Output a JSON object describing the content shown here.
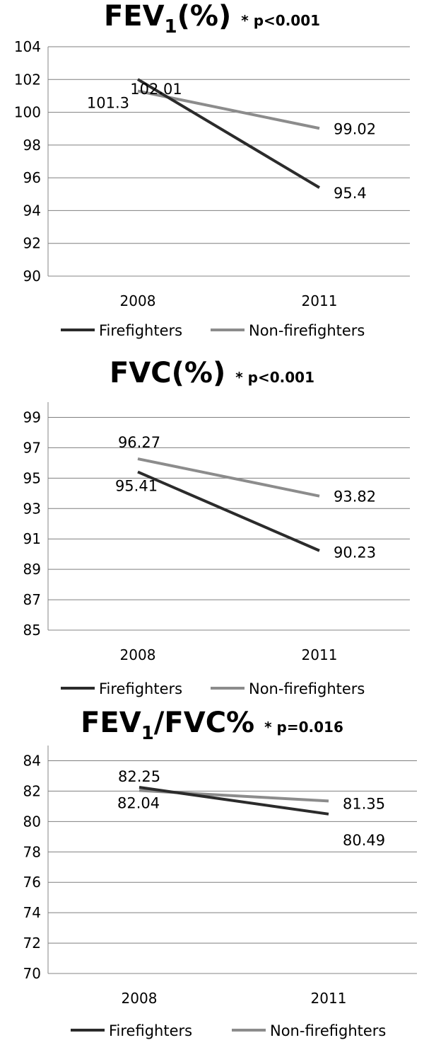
{
  "colors": {
    "firefighters": "#2b2b2b",
    "non_firefighters": "#8c8c8c",
    "grid": "#7f7f7f",
    "axis": "#868686"
  },
  "chart_data": [
    {
      "type": "line",
      "title": {
        "main": "FEV",
        "sub": "1",
        "suffix": "(%)",
        "note": "* p<0.001"
      },
      "categories": [
        "2008",
        "2011"
      ],
      "ylim": [
        90,
        104
      ],
      "yticks": [
        "90",
        "92",
        "94",
        "96",
        "98",
        "100",
        "102",
        "104"
      ],
      "grid": true,
      "legend": "bottom",
      "series": [
        {
          "name": "Firefighters",
          "values": [
            102.01,
            95.4
          ],
          "labels": [
            "102.01",
            "95.4"
          ]
        },
        {
          "name": "Non-firefighters",
          "values": [
            101.3,
            99.02
          ],
          "labels": [
            "101.3",
            "99.02"
          ]
        }
      ]
    },
    {
      "type": "line",
      "title": {
        "main": "FVC(%)",
        "sub": "",
        "suffix": "",
        "note": "* p<0.001"
      },
      "categories": [
        "2008",
        "2011"
      ],
      "ylim": [
        85,
        100
      ],
      "yticks": [
        "85",
        "87",
        "89",
        "91",
        "93",
        "95",
        "97",
        "99"
      ],
      "grid": true,
      "legend": "bottom",
      "series": [
        {
          "name": "Firefighters",
          "values": [
            95.41,
            90.23
          ],
          "labels": [
            "95.41",
            "90.23"
          ]
        },
        {
          "name": "Non-firefighters",
          "values": [
            96.27,
            93.82
          ],
          "labels": [
            "96.27",
            "93.82"
          ]
        }
      ]
    },
    {
      "type": "line",
      "title": {
        "main": "FEV",
        "sub": "1",
        "suffix": "/FVC%",
        "note": "* p=0.016"
      },
      "categories": [
        "2008",
        "2011"
      ],
      "ylim": [
        70,
        85
      ],
      "yticks": [
        "70",
        "72",
        "74",
        "76",
        "78",
        "80",
        "82",
        "84"
      ],
      "grid": true,
      "legend": "bottom",
      "series": [
        {
          "name": "Firefighters",
          "values": [
            82.25,
            80.49
          ],
          "labels": [
            "82.25",
            "80.49"
          ]
        },
        {
          "name": "Non-firefighters",
          "values": [
            82.04,
            81.35
          ],
          "labels": [
            "82.04",
            "81.35"
          ]
        }
      ]
    }
  ]
}
